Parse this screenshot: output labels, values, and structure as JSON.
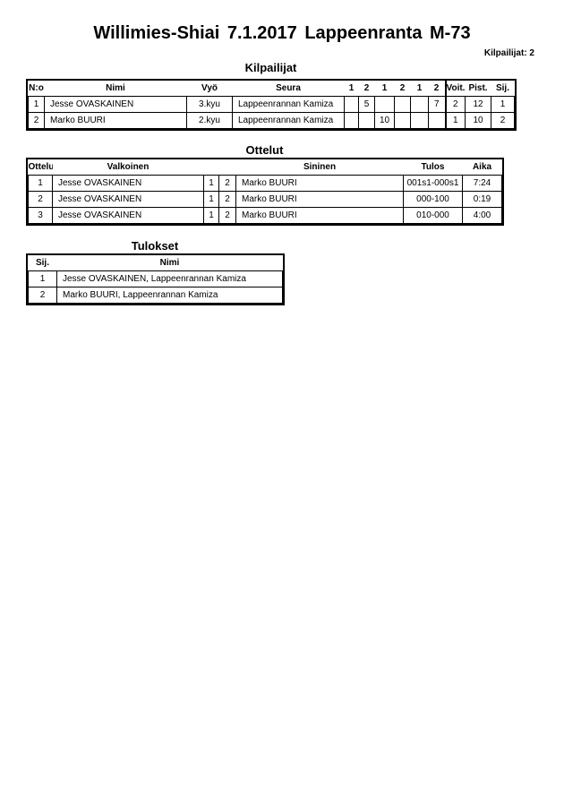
{
  "title": "Willimies-Shiai  7.1.2017  Lappeenranta   M-73",
  "competitor_count": "Kilpailijat: 2",
  "competitors": {
    "heading": "Kilpailijat",
    "headers": [
      "N:o",
      "Nimi",
      "Vyö",
      "Seura",
      "1",
      "2",
      "1",
      "2",
      "1",
      "2",
      "Voit.",
      "Pist.",
      "Sij."
    ],
    "rows": [
      [
        "1",
        "Jesse OVASKAINEN",
        "3.kyu",
        "Lappeenrannan Kamiza",
        "",
        "5",
        "",
        "",
        "",
        "7",
        "2",
        "12",
        "1"
      ],
      [
        "2",
        "Marko BUURI",
        "2.kyu",
        "Lappeenrannan Kamiza",
        "",
        "",
        "10",
        "",
        "",
        "",
        "1",
        "10",
        "2"
      ]
    ]
  },
  "matches": {
    "heading": "Ottelut",
    "headers": [
      "Ottelu",
      "Valkoinen",
      "",
      "",
      "Sininen",
      "Tulos",
      "Aika"
    ],
    "rows": [
      [
        "1",
        "Jesse OVASKAINEN",
        "1",
        "2",
        "Marko BUURI",
        "001s1-000s1",
        "7:24"
      ],
      [
        "2",
        "Jesse OVASKAINEN",
        "1",
        "2",
        "Marko BUURI",
        "000-100",
        "0:19"
      ],
      [
        "3",
        "Jesse OVASKAINEN",
        "1",
        "2",
        "Marko BUURI",
        "010-000",
        "4:00"
      ]
    ]
  },
  "results": {
    "heading": "Tulokset",
    "headers": [
      "Sij.",
      "Nimi"
    ],
    "rows": [
      [
        "1",
        "Jesse OVASKAINEN, Lappeenrannan Kamiza"
      ],
      [
        "2",
        "Marko BUURI, Lappeenrannan Kamiza"
      ]
    ]
  }
}
